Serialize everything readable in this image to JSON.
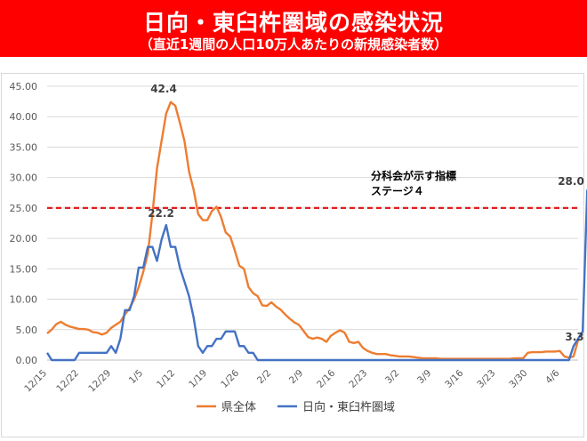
{
  "header": {
    "title": "日向・東臼杵圏域の感染状況",
    "subtitle": "（直近1週間の人口10万人あたりの新規感染者数）"
  },
  "chart_data": {
    "type": "line",
    "title": "日向・東臼杵圏域の感染状況",
    "subtitle": "（直近1週間の人口10万人あたりの新規感染者数）",
    "xlabel": "",
    "ylabel": "",
    "ylim": [
      0,
      45
    ],
    "y_ticks": [
      "0.00",
      "5.00",
      "10.00",
      "15.00",
      "20.00",
      "25.00",
      "30.00",
      "35.00",
      "40.00",
      "45.00"
    ],
    "x_ticks": [
      "12/15",
      "12/22",
      "12/29",
      "1/5",
      "1/12",
      "1/19",
      "1/26",
      "2/2",
      "2/9",
      "2/16",
      "2/23",
      "3/2",
      "3/9",
      "3/16",
      "3/23",
      "3/30",
      "4/6"
    ],
    "x_start": "12/15",
    "grid": true,
    "legend": "bottom",
    "colors": {
      "pref": "#ed7d31",
      "hyuga": "#4472c4",
      "threshold": "#e02020"
    },
    "threshold": {
      "value": 25,
      "label_line1": "分科会が示す指標",
      "label_line2": "ステージ４"
    },
    "annotations": [
      {
        "text": "42.4",
        "series": "pref",
        "date_index": 24
      },
      {
        "text": "22.2",
        "series": "hyuga",
        "date_index": 24
      },
      {
        "text": "28.0",
        "series": "hyuga",
        "date_index": 114
      },
      {
        "text": "3.3",
        "series": "pref",
        "date_index": 114
      }
    ],
    "series": [
      {
        "key": "pref",
        "name": "県全体",
        "values": [
          4.4,
          5.0,
          5.9,
          6.3,
          5.8,
          5.5,
          5.3,
          5.1,
          5.1,
          5.0,
          4.6,
          4.5,
          4.2,
          4.5,
          5.3,
          5.8,
          6.3,
          7.5,
          8.5,
          10.0,
          12.0,
          14.5,
          17.5,
          24.0,
          31.5,
          36.0,
          40.5,
          42.4,
          41.8,
          39.0,
          36.0,
          31.0,
          28.0,
          24.0,
          23.0,
          23.0,
          24.5,
          25.2,
          23.5,
          21.0,
          20.3,
          18.0,
          15.5,
          15.0,
          12.0,
          11.0,
          10.5,
          9.0,
          8.9,
          9.5,
          8.8,
          8.3,
          7.5,
          6.8,
          6.2,
          5.8,
          4.8,
          3.8,
          3.5,
          3.7,
          3.5,
          3.0,
          4.0,
          4.5,
          4.9,
          4.5,
          3.0,
          2.8,
          3.0,
          2.0,
          1.5,
          1.2,
          1.0,
          1.0,
          1.0,
          0.8,
          0.7,
          0.6,
          0.6,
          0.6,
          0.5,
          0.4,
          0.3,
          0.3,
          0.3,
          0.3,
          0.2,
          0.2,
          0.2,
          0.2,
          0.2,
          0.2,
          0.2,
          0.2,
          0.2,
          0.2,
          0.2,
          0.2,
          0.2,
          0.2,
          0.2,
          0.2,
          0.3,
          0.3,
          0.3,
          1.2,
          1.3,
          1.3,
          1.3,
          1.4,
          1.4,
          1.4,
          1.5,
          0.6,
          0.4,
          0.6,
          3.3
        ]
      },
      {
        "key": "hyuga",
        "name": "日向・東臼杵圏域",
        "values": [
          1.2,
          0.0,
          0.0,
          0.0,
          0.0,
          0.0,
          0.0,
          1.2,
          1.2,
          1.2,
          1.2,
          1.2,
          1.2,
          1.2,
          2.3,
          1.2,
          3.5,
          8.2,
          8.2,
          10.5,
          15.2,
          15.2,
          18.6,
          18.6,
          16.3,
          19.8,
          22.2,
          18.6,
          18.6,
          15.2,
          12.9,
          10.5,
          7.0,
          2.3,
          1.2,
          2.3,
          2.3,
          3.5,
          3.5,
          4.7,
          4.7,
          4.7,
          2.3,
          2.3,
          1.2,
          1.2,
          0.0,
          0.0,
          0.0,
          0.0,
          0.0,
          0.0,
          0.0,
          0.0,
          0.0,
          0.0,
          0.0,
          0.0,
          0.0,
          0.0,
          0.0,
          0.0,
          0.0,
          0.0,
          0.0,
          0.0,
          0.0,
          0.0,
          0.0,
          0.0,
          0.0,
          0.0,
          0.0,
          0.0,
          0.0,
          0.0,
          0.0,
          0.0,
          0.0,
          0.0,
          0.0,
          0.0,
          0.0,
          0.0,
          0.0,
          0.0,
          0.0,
          0.0,
          0.0,
          0.0,
          0.0,
          0.0,
          0.0,
          0.0,
          0.0,
          0.0,
          0.0,
          0.0,
          0.0,
          0.0,
          0.0,
          0.0,
          0.0,
          0.0,
          0.0,
          0.0,
          0.0,
          0.0,
          0.0,
          0.0,
          0.0,
          0.0,
          0.0,
          0.0,
          0.0,
          2.3,
          3.5,
          4.7,
          28.0
        ]
      }
    ]
  }
}
